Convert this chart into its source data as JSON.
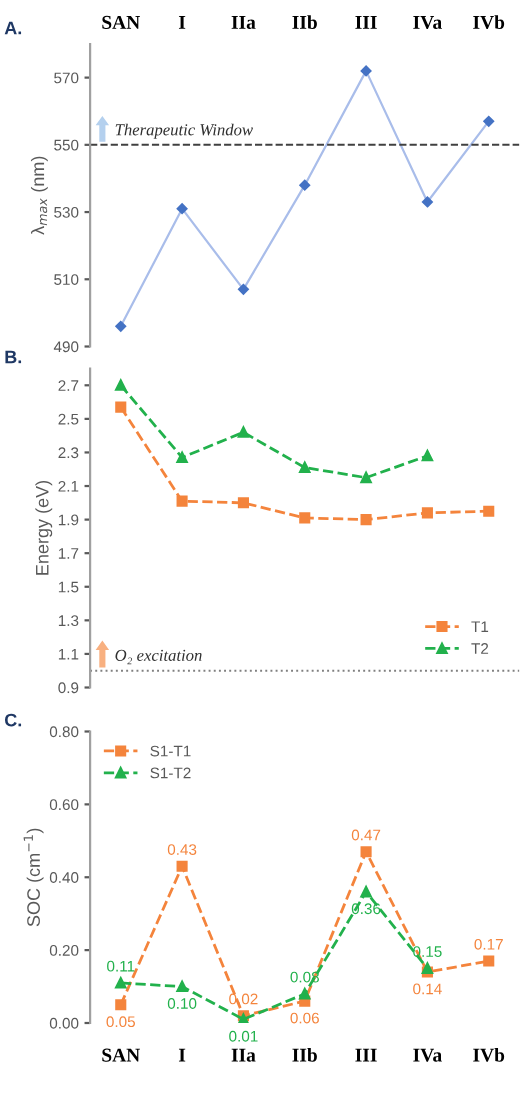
{
  "chart_data": [
    {
      "type": "line",
      "title": "A.",
      "ylabel": "λ$_{max}$ (nm)",
      "categories": [
        "SAN",
        "I",
        "IIa",
        "IIb",
        "III",
        "IVa",
        "IVb"
      ],
      "series": [
        {
          "color": "#4472c4",
          "values": [
            496,
            531,
            507,
            538,
            572,
            533,
            557
          ]
        }
      ],
      "ylim": [
        490,
        580
      ],
      "yticks": [
        490,
        510,
        530,
        550,
        570
      ],
      "marker": "diamond",
      "line_style": "solid",
      "grid": false,
      "legend": false,
      "ref_lines": [
        {
          "axis": "y",
          "value": 550,
          "label": "Therapeutic Window",
          "color": "#404040",
          "line_style": "dashed"
        }
      ]
    },
    {
      "type": "line",
      "title": "B.",
      "ylabel": "Energy (eV)",
      "categories": [
        null,
        null,
        null,
        null,
        null,
        null,
        null
      ],
      "series": [
        {
          "name": "T1",
          "color": "#f4843c",
          "values": [
            2.57,
            2.01,
            2.0,
            1.91,
            1.9,
            1.94,
            1.95
          ],
          "marker": "square"
        },
        {
          "name": "T2",
          "color": "#22b14c",
          "values": [
            2.7,
            2.27,
            2.42,
            2.21,
            2.15,
            2.28,
            null
          ],
          "marker": "triangle"
        }
      ],
      "ylim": [
        0.9,
        2.8
      ],
      "yticks": [
        0.9,
        1.1,
        1.3,
        1.5,
        1.7,
        1.9,
        2.1,
        2.3,
        2.5,
        2.7
      ],
      "line_style": "dashed",
      "grid": false,
      "legend": "bottom right",
      "tick_labels": "y",
      "ref_lines": [
        {
          "axis": "y",
          "value": 1.0,
          "label": "O₂ excitation",
          "color": "#808080",
          "line_style": "dotted"
        }
      ]
    },
    {
      "type": "line",
      "title": "C.",
      "ylabel": "SOC (cm$^{−1}$)",
      "categories": [
        "SAN",
        "I",
        "IIa",
        "IIb",
        "III",
        "IVa",
        "IVb"
      ],
      "series": [
        {
          "name": "S1-T1",
          "color": "#f4843c",
          "values": [
            0.05,
            0.43,
            0.02,
            0.06,
            0.47,
            0.14,
            0.17
          ],
          "marker": "square",
          "value_labels": [
            "0.05",
            "0.43",
            "0.02",
            "0.06",
            "0.47",
            "0.14",
            "0.17"
          ]
        },
        {
          "name": "S1-T2",
          "color": "#22b14c",
          "values": [
            0.11,
            0.1,
            0.01,
            0.08,
            0.36,
            0.15,
            null
          ],
          "marker": "triangle",
          "value_labels": [
            "0.11",
            "0.10",
            "0.01",
            "0.08",
            "0.36",
            "0.15",
            null
          ]
        }
      ],
      "ylim": [
        0,
        0.8
      ],
      "yticks": [
        {
          "value": 0,
          "label": "0.00"
        },
        {
          "value": 0.2,
          "label": "0.20"
        },
        {
          "value": 0.4,
          "label": "0.40"
        },
        {
          "value": 0.6,
          "label": "0.60"
        },
        {
          "value": 0.8,
          "label": "0.80"
        }
      ],
      "line_style": "dashed",
      "grid": false,
      "legend": "top left"
    }
  ]
}
